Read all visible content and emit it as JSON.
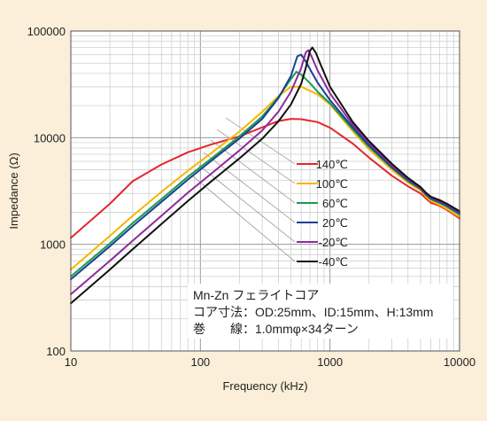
{
  "chart_data": {
    "type": "line",
    "xlabel": "Frequency (kHz)",
    "ylabel": "Impedance (Ω)",
    "x_scale": "log",
    "y_scale": "log",
    "xlim": [
      10,
      10000
    ],
    "ylim": [
      100,
      100000
    ],
    "grid": true,
    "x_tick_labels": [
      "10",
      "100",
      "1000",
      "10000"
    ],
    "y_tick_labels": [
      "100",
      "1000",
      "10000",
      "100000"
    ],
    "legend_position": "right-center",
    "series": [
      {
        "name": "140℃",
        "color": "#e4262d",
        "points": [
          [
            10,
            1150
          ],
          [
            20,
            2400
          ],
          [
            30,
            3900
          ],
          [
            50,
            5600
          ],
          [
            80,
            7300
          ],
          [
            120,
            8600
          ],
          [
            200,
            10300
          ],
          [
            300,
            12500
          ],
          [
            400,
            14300
          ],
          [
            500,
            15000
          ],
          [
            600,
            14900
          ],
          [
            800,
            14000
          ],
          [
            1000,
            12400
          ],
          [
            1500,
            8800
          ],
          [
            2000,
            6500
          ],
          [
            3000,
            4400
          ],
          [
            4000,
            3500
          ],
          [
            5000,
            3000
          ],
          [
            5500,
            2700
          ],
          [
            6000,
            2450
          ],
          [
            7000,
            2300
          ],
          [
            8000,
            2100
          ],
          [
            10000,
            1750
          ]
        ]
      },
      {
        "name": "100℃",
        "color": "#f7b500",
        "points": [
          [
            10,
            580
          ],
          [
            20,
            1200
          ],
          [
            30,
            1850
          ],
          [
            50,
            3100
          ],
          [
            80,
            4900
          ],
          [
            120,
            7100
          ],
          [
            200,
            11400
          ],
          [
            300,
            17500
          ],
          [
            400,
            24500
          ],
          [
            500,
            30000
          ],
          [
            600,
            30000
          ],
          [
            800,
            25500
          ],
          [
            1000,
            20500
          ],
          [
            1500,
            11500
          ],
          [
            2000,
            7800
          ],
          [
            3000,
            5000
          ],
          [
            4000,
            3800
          ],
          [
            5000,
            3200
          ],
          [
            5500,
            2800
          ],
          [
            6000,
            2550
          ],
          [
            7000,
            2350
          ],
          [
            8000,
            2150
          ],
          [
            10000,
            1800
          ]
        ]
      },
      {
        "name": "60℃",
        "color": "#1a9c50",
        "points": [
          [
            10,
            500
          ],
          [
            20,
            1020
          ],
          [
            30,
            1580
          ],
          [
            50,
            2650
          ],
          [
            80,
            4300
          ],
          [
            120,
            6300
          ],
          [
            200,
            10300
          ],
          [
            300,
            15800
          ],
          [
            400,
            24000
          ],
          [
            500,
            35500
          ],
          [
            550,
            41500
          ],
          [
            600,
            39000
          ],
          [
            700,
            32500
          ],
          [
            800,
            27000
          ],
          [
            1000,
            21000
          ],
          [
            1500,
            12000
          ],
          [
            2000,
            8200
          ],
          [
            3000,
            5200
          ],
          [
            4000,
            3900
          ],
          [
            5000,
            3300
          ],
          [
            5500,
            2900
          ],
          [
            6000,
            2650
          ],
          [
            7000,
            2450
          ],
          [
            8000,
            2250
          ],
          [
            10000,
            1900
          ]
        ]
      },
      {
        "name": "20℃",
        "color": "#1c3f94",
        "points": [
          [
            10,
            470
          ],
          [
            20,
            960
          ],
          [
            30,
            1480
          ],
          [
            50,
            2500
          ],
          [
            80,
            4050
          ],
          [
            120,
            6000
          ],
          [
            200,
            9800
          ],
          [
            300,
            15000
          ],
          [
            400,
            23500
          ],
          [
            500,
            38000
          ],
          [
            560,
            58000
          ],
          [
            600,
            60000
          ],
          [
            650,
            52000
          ],
          [
            700,
            44000
          ],
          [
            800,
            33000
          ],
          [
            1000,
            22500
          ],
          [
            1500,
            12500
          ],
          [
            2000,
            8500
          ],
          [
            3000,
            5300
          ],
          [
            4000,
            4000
          ],
          [
            5000,
            3350
          ],
          [
            5500,
            2950
          ],
          [
            6000,
            2700
          ],
          [
            7000,
            2500
          ],
          [
            8000,
            2300
          ],
          [
            10000,
            1950
          ]
        ]
      },
      {
        "name": "-20℃",
        "color": "#8e2a9a",
        "points": [
          [
            10,
            340
          ],
          [
            20,
            700
          ],
          [
            30,
            1080
          ],
          [
            50,
            1850
          ],
          [
            80,
            3050
          ],
          [
            120,
            4550
          ],
          [
            200,
            7600
          ],
          [
            300,
            11700
          ],
          [
            400,
            17500
          ],
          [
            500,
            27000
          ],
          [
            600,
            45000
          ],
          [
            650,
            63000
          ],
          [
            680,
            66000
          ],
          [
            720,
            58000
          ],
          [
            800,
            43000
          ],
          [
            1000,
            26000
          ],
          [
            1500,
            13200
          ],
          [
            2000,
            8900
          ],
          [
            3000,
            5500
          ],
          [
            4000,
            4100
          ],
          [
            5000,
            3400
          ],
          [
            5500,
            3000
          ],
          [
            6000,
            2750
          ],
          [
            7000,
            2550
          ],
          [
            8000,
            2350
          ],
          [
            10000,
            2000
          ]
        ]
      },
      {
        "name": "-40℃",
        "color": "#111111",
        "points": [
          [
            10,
            280
          ],
          [
            20,
            580
          ],
          [
            30,
            900
          ],
          [
            50,
            1550
          ],
          [
            80,
            2550
          ],
          [
            120,
            3850
          ],
          [
            200,
            6400
          ],
          [
            300,
            9800
          ],
          [
            400,
            14200
          ],
          [
            500,
            20500
          ],
          [
            600,
            32000
          ],
          [
            650,
            45000
          ],
          [
            700,
            65000
          ],
          [
            730,
            70000
          ],
          [
            780,
            62000
          ],
          [
            850,
            48000
          ],
          [
            1000,
            30000
          ],
          [
            1500,
            14000
          ],
          [
            2000,
            9300
          ],
          [
            3000,
            5700
          ],
          [
            4000,
            4200
          ],
          [
            5000,
            3450
          ],
          [
            5500,
            3050
          ],
          [
            6000,
            2800
          ],
          [
            7000,
            2600
          ],
          [
            8000,
            2400
          ],
          [
            10000,
            2050
          ]
        ]
      }
    ],
    "annotation": {
      "lines": [
        "Mn-Zn フェライトコア",
        "コア寸法：OD:25mm、ID:15mm、H:13mm",
        "巻　　線：1.0mmφ×34ターン"
      ]
    },
    "colors": {
      "background": "#fbefd9",
      "plot_area": "#ffffff",
      "grid_major": "#9a9a9a",
      "grid_minor": "#cfcfcf"
    }
  }
}
